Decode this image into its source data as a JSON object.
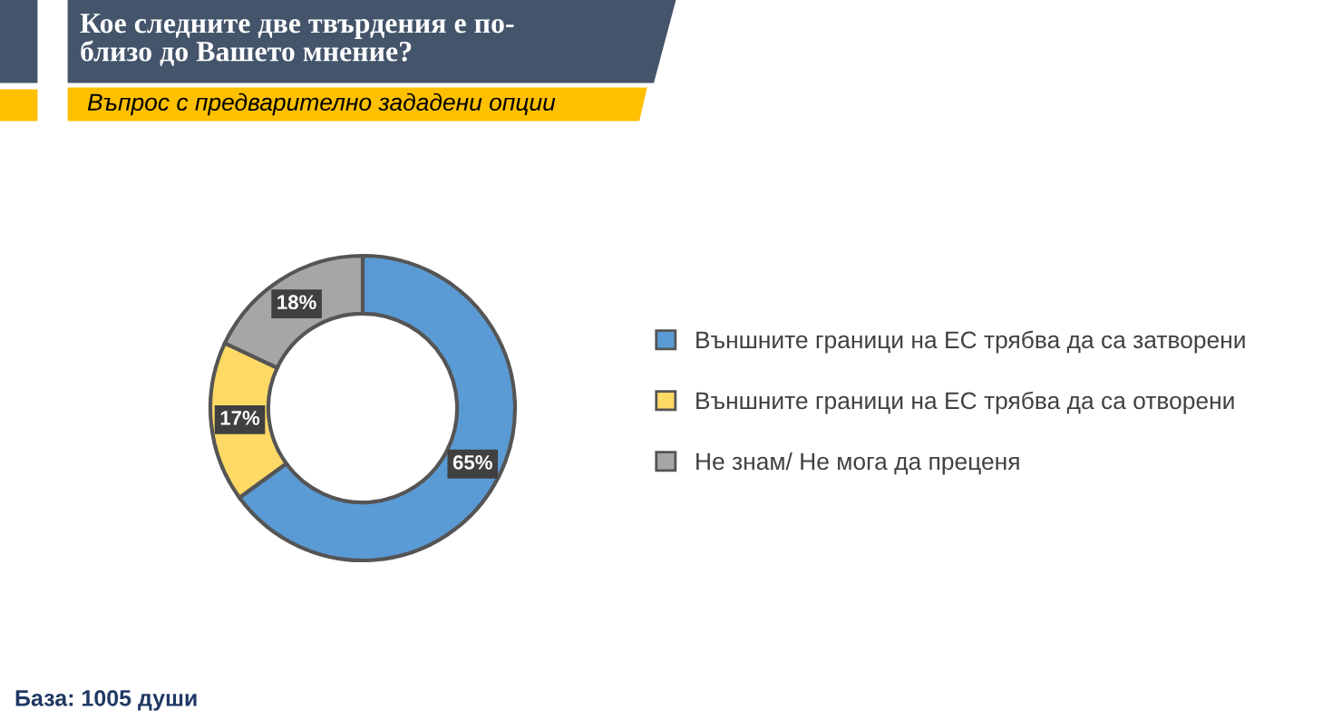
{
  "chart_data": {
    "type": "donut",
    "title": "Кое следните две твърдения е по-\nблизо до Вашето мнение?",
    "subtitle": "Въпрос с предварително зададени опции",
    "categories": [
      "Външните граници на ЕС трябва да са затворени",
      "Външните граници на ЕС трябва да са отворени",
      "Не знам/ Не мога да преценя"
    ],
    "values": [
      65,
      17,
      18
    ],
    "colors": [
      "#5b9bd5",
      "#ffd966",
      "#a6a6a6"
    ],
    "value_labels": [
      "65%",
      "17%",
      "18%"
    ],
    "legend": "right",
    "annotations": [
      "База: 1005 души"
    ]
  }
}
